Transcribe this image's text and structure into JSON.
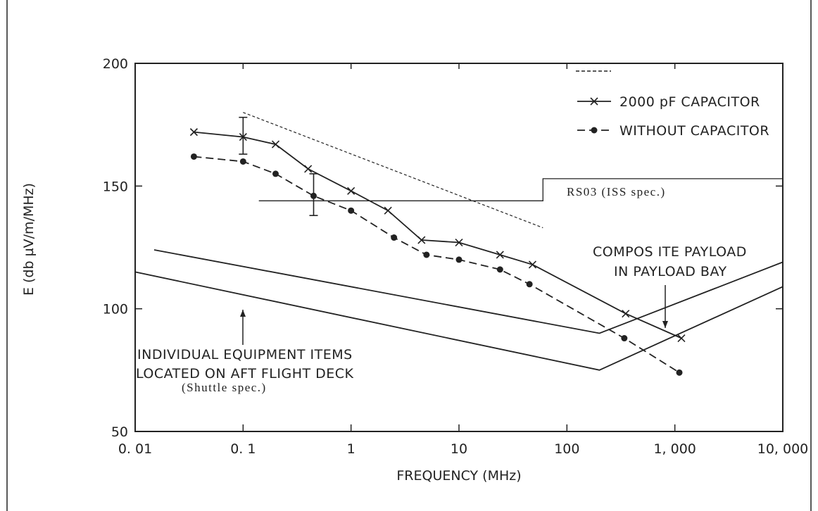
{
  "chart_data": {
    "type": "line",
    "xscale": "log",
    "xlim": [
      0.01,
      10000
    ],
    "ylim": [
      50,
      200
    ],
    "xlabel": "FREQUENCY (MHz)",
    "ylabel": "E (db µV/m/MHz)",
    "x_ticks": [
      {
        "value": 0.01,
        "label": "0. 01"
      },
      {
        "value": 0.1,
        "label": "0. 1"
      },
      {
        "value": 1,
        "label": "1"
      },
      {
        "value": 10,
        "label": "10"
      },
      {
        "value": 100,
        "label": "100"
      },
      {
        "value": 1000,
        "label": "1, 000"
      },
      {
        "value": 10000,
        "label": "10, 000"
      }
    ],
    "y_ticks": [
      {
        "value": 50,
        "label": "50"
      },
      {
        "value": 100,
        "label": "100"
      },
      {
        "value": 150,
        "label": "150"
      },
      {
        "value": 200,
        "label": "200"
      }
    ],
    "series": [
      {
        "name": "2000 pF CAPACITOR",
        "style": "solid",
        "marker": "x",
        "points": [
          {
            "x": 0.035,
            "y": 172
          },
          {
            "x": 0.1,
            "y": 170
          },
          {
            "x": 0.2,
            "y": 167
          },
          {
            "x": 0.4,
            "y": 157
          },
          {
            "x": 1.0,
            "y": 148
          },
          {
            "x": 2.2,
            "y": 140
          },
          {
            "x": 4.5,
            "y": 128
          },
          {
            "x": 10,
            "y": 127
          },
          {
            "x": 24,
            "y": 122
          },
          {
            "x": 48,
            "y": 118
          },
          {
            "x": 350,
            "y": 98
          },
          {
            "x": 1150,
            "y": 88
          }
        ]
      },
      {
        "name": "WITHOUT CAPACITOR",
        "style": "dashed",
        "marker": "dot",
        "points": [
          {
            "x": 0.035,
            "y": 162
          },
          {
            "x": 0.1,
            "y": 160
          },
          {
            "x": 0.2,
            "y": 155
          },
          {
            "x": 0.45,
            "y": 146
          },
          {
            "x": 1.0,
            "y": 140
          },
          {
            "x": 2.5,
            "y": 129
          },
          {
            "x": 5,
            "y": 122
          },
          {
            "x": 10,
            "y": 120
          },
          {
            "x": 24,
            "y": 116
          },
          {
            "x": 45,
            "y": 110
          },
          {
            "x": 340,
            "y": 88
          },
          {
            "x": 1100,
            "y": 74
          }
        ]
      },
      {
        "name": "COMPOSITE PAYLOAD IN PAYLOAD BAY",
        "style": "solid",
        "marker": "none",
        "points": [
          {
            "x": 0.015,
            "y": 124
          },
          {
            "x": 200,
            "y": 90
          },
          {
            "x": 10000,
            "y": 119
          }
        ]
      },
      {
        "name": "INDIVIDUAL EQUIPMENT ITEMS LOCATED ON AFT FLIGHT DECK",
        "style": "solid",
        "marker": "none",
        "points": [
          {
            "x": 0.01,
            "y": 115
          },
          {
            "x": 200,
            "y": 75
          },
          {
            "x": 10000,
            "y": 109
          }
        ]
      },
      {
        "name": "RS03 (ISS spec.)",
        "style": "step",
        "marker": "none",
        "points": [
          {
            "x": 0.14,
            "y": 144
          },
          {
            "x": 60,
            "y": 144
          },
          {
            "x": 60,
            "y": 153
          },
          {
            "x": 10000,
            "y": 153
          }
        ]
      },
      {
        "name": "dashed-diagonal",
        "style": "thin-dashed",
        "marker": "none",
        "points": [
          {
            "x": 0.1,
            "y": 180
          },
          {
            "x": 60,
            "y": 133
          }
        ]
      }
    ],
    "error_bars": [
      {
        "x": 0.1,
        "y_low": 163,
        "y_high": 178
      },
      {
        "x": 0.45,
        "y_low": 138,
        "y_high": 155
      }
    ],
    "legend": {
      "placement": "top-right",
      "entries": [
        "2000 pF CAPACITOR",
        "WITHOUT CAPACITOR"
      ]
    },
    "annotations": {
      "composite_line1": "COMPOS ITE PAYLOAD",
      "composite_line2": "IN PAYLOAD BAY",
      "individual_line1": "INDIVIDUAL EQUIPMENT ITEMS",
      "individual_line2": "LOCATED ON AFT FLIGHT DECK",
      "shuttle_spec": "(Shuttle spec.)",
      "rs03": "RS03 (ISS spec.)"
    }
  }
}
